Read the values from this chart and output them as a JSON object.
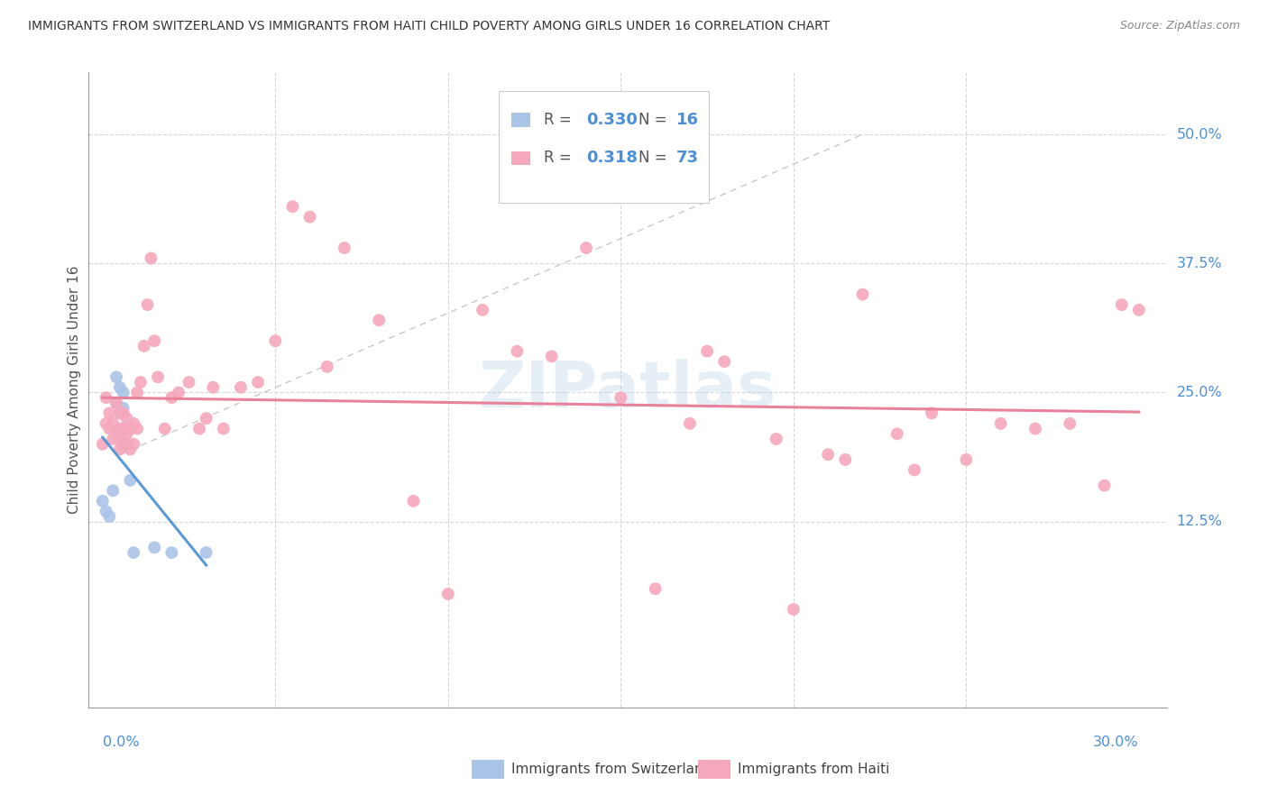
{
  "title": "IMMIGRANTS FROM SWITZERLAND VS IMMIGRANTS FROM HAITI CHILD POVERTY AMONG GIRLS UNDER 16 CORRELATION CHART",
  "source": "Source: ZipAtlas.com",
  "ylabel": "Child Poverty Among Girls Under 16",
  "background_color": "#ffffff",
  "watermark": "ZIPatlas",
  "switzerland_color": "#aac4e8",
  "haiti_color": "#f5a8bc",
  "trend_switzerland_color": "#5b9bd5",
  "trend_haiti_color": "#e8829a",
  "ref_line_color": "#cccccc",
  "legend_blue": "#4a90d9",
  "swiss_x": [
    0.0,
    0.001,
    0.002,
    0.003,
    0.004,
    0.004,
    0.005,
    0.005,
    0.006,
    0.006,
    0.007,
    0.008,
    0.009,
    0.015,
    0.02,
    0.03
  ],
  "swiss_y": [
    0.145,
    0.135,
    0.13,
    0.155,
    0.24,
    0.265,
    0.23,
    0.255,
    0.235,
    0.25,
    0.2,
    0.165,
    0.095,
    0.1,
    0.095,
    0.095
  ],
  "haiti_x": [
    0.0,
    0.001,
    0.001,
    0.002,
    0.002,
    0.003,
    0.003,
    0.004,
    0.004,
    0.005,
    0.005,
    0.005,
    0.005,
    0.006,
    0.006,
    0.006,
    0.007,
    0.007,
    0.007,
    0.008,
    0.008,
    0.009,
    0.009,
    0.01,
    0.01,
    0.011,
    0.012,
    0.013,
    0.014,
    0.015,
    0.016,
    0.018,
    0.02,
    0.022,
    0.025,
    0.028,
    0.03,
    0.032,
    0.035,
    0.04,
    0.045,
    0.05,
    0.055,
    0.06,
    0.065,
    0.07,
    0.08,
    0.09,
    0.1,
    0.11,
    0.12,
    0.14,
    0.16,
    0.18,
    0.2,
    0.22,
    0.24,
    0.26,
    0.28,
    0.29,
    0.295,
    0.3,
    0.15,
    0.17,
    0.21,
    0.23,
    0.25,
    0.27,
    0.13,
    0.175,
    0.195,
    0.215,
    0.235
  ],
  "haiti_y": [
    0.2,
    0.245,
    0.22,
    0.215,
    0.23,
    0.22,
    0.205,
    0.21,
    0.24,
    0.23,
    0.205,
    0.215,
    0.195,
    0.215,
    0.2,
    0.23,
    0.21,
    0.225,
    0.2,
    0.195,
    0.215,
    0.22,
    0.2,
    0.25,
    0.215,
    0.26,
    0.295,
    0.335,
    0.38,
    0.3,
    0.265,
    0.215,
    0.245,
    0.25,
    0.26,
    0.215,
    0.225,
    0.255,
    0.215,
    0.255,
    0.26,
    0.3,
    0.43,
    0.42,
    0.275,
    0.39,
    0.32,
    0.145,
    0.055,
    0.33,
    0.29,
    0.39,
    0.06,
    0.28,
    0.04,
    0.345,
    0.23,
    0.22,
    0.22,
    0.16,
    0.335,
    0.33,
    0.245,
    0.22,
    0.19,
    0.21,
    0.185,
    0.215,
    0.285,
    0.29,
    0.205,
    0.185,
    0.175
  ],
  "xlim_data": [
    0.0,
    0.3
  ],
  "ylim_data": [
    0.0,
    0.52
  ],
  "x_ticks": [
    0.05,
    0.1,
    0.15,
    0.2,
    0.25
  ],
  "y_ticks": [
    0.125,
    0.25,
    0.375,
    0.5
  ],
  "y_tick_labels": [
    "12.5%",
    "25.0%",
    "37.5%",
    "50.0%"
  ]
}
